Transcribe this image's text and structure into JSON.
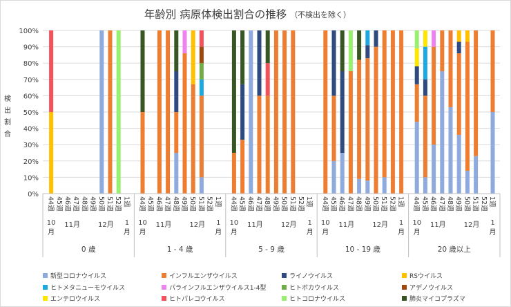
{
  "chart_data": {
    "type": "bar",
    "stacked": true,
    "title": "年齢別 病原体検出割合の推移",
    "title_note": "（不検出を除く）",
    "ylabel": "検出割合",
    "ylim": [
      0,
      100
    ],
    "y_ticks": [
      "0%",
      "10%",
      "20%",
      "30%",
      "40%",
      "50%",
      "60%",
      "70%",
      "80%",
      "90%",
      "100%"
    ],
    "week_labels": [
      "44週",
      "45週",
      "46週",
      "47週",
      "48週",
      "49週",
      "50週",
      "51週",
      "52週",
      "1週"
    ],
    "legend_position": "bottom",
    "series": [
      {
        "key": "covid",
        "name": "新型コロナウイルス",
        "color": "#8FAADC"
      },
      {
        "key": "flu",
        "name": "インフルエンザウイルス",
        "color": "#ED7D31"
      },
      {
        "key": "rhino",
        "name": "ライノウイルス",
        "color": "#2F4A7F"
      },
      {
        "key": "rsv",
        "name": "RSウイルス",
        "color": "#FFC000"
      },
      {
        "key": "hmpv",
        "name": "ヒトメタニューモウイルス",
        "color": "#1CA9E1"
      },
      {
        "key": "para",
        "name": "パラインフルエンザウイルス1-4型",
        "color": "#EE82EE"
      },
      {
        "key": "boca",
        "name": "ヒトボカウイルス",
        "color": "#70AD47"
      },
      {
        "key": "adeno",
        "name": "アデノウイルス",
        "color": "#9E480E"
      },
      {
        "key": "entero",
        "name": "エンテロウイルス",
        "color": "#FFE600"
      },
      {
        "key": "parecho",
        "name": "ヒトパレコウイルス",
        "color": "#F4515A"
      },
      {
        "key": "corona",
        "name": "ヒトコロナウイルス",
        "color": "#99F06F"
      },
      {
        "key": "myco",
        "name": "肺炎マイコプラズマ",
        "color": "#375623"
      }
    ],
    "groups": [
      {
        "name": "0 歳",
        "months": [
          {
            "label": "10月",
            "weeks": [
              0
            ]
          },
          {
            "label": "11月",
            "weeks": [
              1,
              2,
              3,
              4
            ]
          },
          {
            "label": "12月",
            "weeks": [
              5,
              6,
              7,
              8
            ]
          },
          {
            "label": "1月",
            "weeks": [
              9
            ]
          }
        ],
        "bars": [
          {
            "rsv": 50,
            "parecho": 50
          },
          {},
          {},
          {},
          {},
          {},
          {
            "covid": 100
          },
          {
            "flu": 100
          },
          {
            "corona": 100
          },
          {}
        ]
      },
      {
        "name": "1 - 4 歳",
        "months": [
          {
            "label": "10月",
            "weeks": [
              0
            ]
          },
          {
            "label": "11月",
            "weeks": [
              1,
              2,
              3,
              4
            ]
          },
          {
            "label": "12月",
            "weeks": [
              5,
              6,
              7,
              8
            ]
          },
          {
            "label": "1月",
            "weeks": [
              9
            ]
          }
        ],
        "bars": [
          {
            "flu": 50,
            "myco": 50
          },
          {},
          {
            "flu": 100
          },
          {
            "flu": 100
          },
          {
            "covid": 25,
            "flu": 25,
            "rhino": 25,
            "myco": 25
          },
          {
            "flu": 86,
            "para": 14
          },
          {
            "flu": 67,
            "rsv": 33
          },
          {
            "covid": 10,
            "flu": 50,
            "hmpv": 10,
            "boca": 10,
            "adeno": 10,
            "parecho": 10
          },
          {},
          {}
        ]
      },
      {
        "name": "5 - 9 歳",
        "months": [
          {
            "label": "10月",
            "weeks": [
              0
            ]
          },
          {
            "label": "11月",
            "weeks": [
              1,
              2,
              3,
              4
            ]
          },
          {
            "label": "12月",
            "weeks": [
              5,
              6,
              7,
              8
            ]
          },
          {
            "label": "1月",
            "weeks": [
              9
            ]
          }
        ],
        "bars": [
          {
            "flu": 25,
            "myco": 75
          },
          {
            "flu": 33,
            "rhino": 34,
            "myco": 33
          },
          {
            "covid": 100
          },
          {
            "flu": 60,
            "rhino": 40
          },
          {
            "flu": 60,
            "parecho": 20,
            "myco": 20
          },
          {
            "flu": 100
          },
          {
            "flu": 100
          },
          {
            "flu": 100
          },
          {},
          {}
        ]
      },
      {
        "name": "10 - 19 歳",
        "months": [
          {
            "label": "10月",
            "weeks": [
              0
            ]
          },
          {
            "label": "11月",
            "weeks": [
              1,
              2,
              3,
              4
            ]
          },
          {
            "label": "12月",
            "weeks": [
              5,
              6,
              7,
              8
            ]
          },
          {
            "label": "1月",
            "weeks": [
              9
            ]
          }
        ],
        "bars": [
          {
            "flu": 100
          },
          {
            "covid": 20,
            "flu": 40,
            "rhino": 40
          },
          {
            "covid": 25,
            "rhino": 50,
            "myco": 25
          },
          {
            "flu": 75,
            "corona": 25
          },
          {
            "covid": 9,
            "flu": 73,
            "myco": 18
          },
          {
            "covid": 8,
            "flu": 75,
            "hmpv": 9,
            "rhino": 8
          },
          {
            "flu": 90,
            "rhino": 10
          },
          {
            "covid": 10,
            "flu": 90
          },
          {
            "flu": 100
          },
          {
            "flu": 100
          }
        ]
      },
      {
        "name": "20 歳以上",
        "months": [
          {
            "label": "10月",
            "weeks": [
              0
            ]
          },
          {
            "label": "11月",
            "weeks": [
              1,
              2,
              3,
              4
            ]
          },
          {
            "label": "12月",
            "weeks": [
              5,
              6,
              7,
              8
            ]
          },
          {
            "label": "1月",
            "weeks": [
              9
            ]
          }
        ],
        "bars": [
          {
            "covid": 44,
            "flu": 23,
            "rhino": 11,
            "entero": 11,
            "corona": 11
          },
          {
            "covid": 10,
            "flu": 50,
            "rhino": 10,
            "hmpv": 20,
            "entero": 10
          },
          {
            "covid": 30,
            "flu": 60,
            "para": 10
          },
          {
            "covid": 75,
            "flu": 25
          },
          {
            "covid": 53,
            "flu": 47
          },
          {
            "covid": 36,
            "flu": 50,
            "rhino": 7,
            "rsv": 7
          },
          {
            "covid": 14,
            "flu": 79,
            "rsv": 7
          },
          {
            "covid": 23,
            "flu": 77
          },
          {},
          {
            "covid": 50,
            "flu": 50
          }
        ]
      }
    ]
  }
}
